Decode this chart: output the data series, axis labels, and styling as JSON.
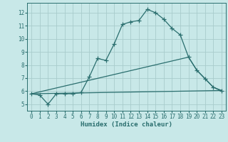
{
  "xlabel": "Humidex (Indice chaleur)",
  "xlim": [
    -0.5,
    23.5
  ],
  "ylim": [
    4.5,
    12.75
  ],
  "yticks": [
    5,
    6,
    7,
    8,
    9,
    10,
    11,
    12
  ],
  "xticks": [
    0,
    1,
    2,
    3,
    4,
    5,
    6,
    7,
    8,
    9,
    10,
    11,
    12,
    13,
    14,
    15,
    16,
    17,
    18,
    19,
    20,
    21,
    22,
    23
  ],
  "background_color": "#c8e8e8",
  "grid_color": "#a8cccc",
  "line_color": "#2a6e6e",
  "line1_x": [
    0,
    1,
    2,
    3,
    4,
    5,
    6,
    7,
    8,
    9,
    10,
    11,
    12,
    13,
    14,
    15,
    16,
    17,
    18,
    19,
    20,
    21,
    22,
    23
  ],
  "line1_y": [
    5.8,
    5.7,
    5.0,
    5.8,
    5.8,
    5.8,
    5.9,
    7.1,
    8.5,
    8.35,
    9.6,
    11.1,
    11.3,
    11.4,
    12.25,
    12.0,
    11.5,
    10.8,
    10.3,
    8.6,
    7.6,
    6.95,
    6.3,
    6.0
  ],
  "line2_x": [
    0,
    23
  ],
  "line2_y": [
    5.8,
    6.05
  ],
  "line3_x": [
    0,
    19,
    20,
    22,
    23
  ],
  "line3_y": [
    5.8,
    8.6,
    7.6,
    6.3,
    6.05
  ],
  "linewidth": 0.9,
  "marker_size": 4.0,
  "tick_fontsize": 5.5,
  "xlabel_fontsize": 6.5
}
